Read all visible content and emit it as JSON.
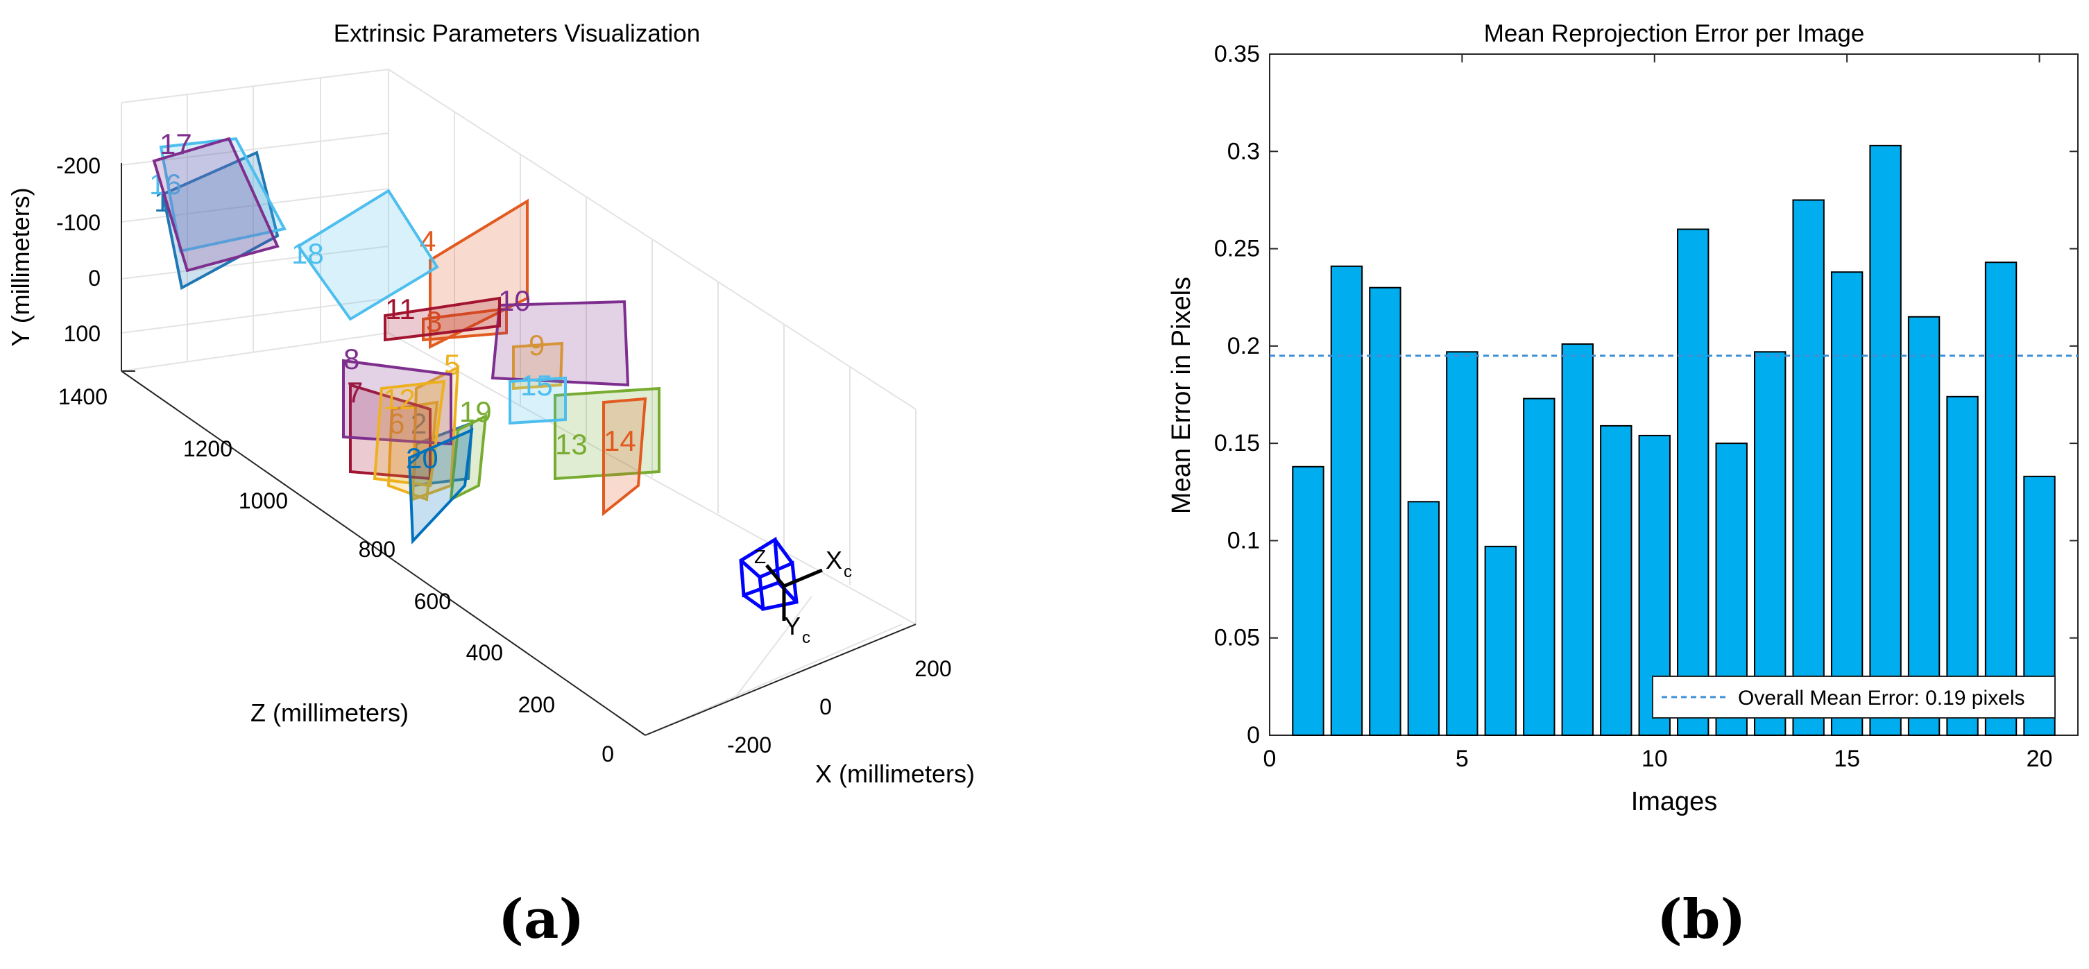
{
  "panels": {
    "a": "(a)",
    "b": "(b)"
  },
  "colors": {
    "bar": "#00AEEF",
    "mean": "#3E8FD6",
    "camera": "#0000FF"
  },
  "chart_data": [
    {
      "type": "scatter3d",
      "title": "Extrinsic Parameters Visualization",
      "xlabel": "X (millimeters)",
      "ylabel": "Y (millimeters)",
      "zlabel": "Z (millimeters)",
      "x_ticks": [
        "-200",
        "0",
        "200"
      ],
      "y_ticks": [
        "-200",
        "-100",
        "0",
        "100"
      ],
      "z_ticks": [
        "0",
        "200",
        "400",
        "600",
        "800",
        "1000",
        "1200",
        "1400"
      ],
      "camera": {
        "x_label": "X",
        "x_sub": "c",
        "y_label": "Y",
        "y_sub": "c",
        "z_label": "Z"
      },
      "boards": [
        {
          "id": "1",
          "color": "#1F77B4"
        },
        {
          "id": "2",
          "color": "#1F77B4"
        },
        {
          "id": "3",
          "color": "#E15A1F"
        },
        {
          "id": "4",
          "color": "#E15A1F"
        },
        {
          "id": "5",
          "color": "#EDB120"
        },
        {
          "id": "6",
          "color": "#EDB120"
        },
        {
          "id": "7",
          "color": "#A2142F"
        },
        {
          "id": "8",
          "color": "#7E2F8E"
        },
        {
          "id": "9",
          "color": "#EDB120"
        },
        {
          "id": "10",
          "color": "#7E2F8E"
        },
        {
          "id": "11",
          "color": "#A2142F"
        },
        {
          "id": "12",
          "color": "#EDB120"
        },
        {
          "id": "13",
          "color": "#77AC30"
        },
        {
          "id": "14",
          "color": "#E15A1F"
        },
        {
          "id": "15",
          "color": "#4DBEEE"
        },
        {
          "id": "16",
          "color": "#4DBEEE"
        },
        {
          "id": "17",
          "color": "#7E2F8E"
        },
        {
          "id": "18",
          "color": "#4DBEEE"
        },
        {
          "id": "19",
          "color": "#77AC30"
        },
        {
          "id": "20",
          "color": "#0072BD"
        }
      ]
    },
    {
      "type": "bar",
      "title": "Mean Reprojection Error per Image",
      "xlabel": "Images",
      "ylabel": "Mean Error in Pixels",
      "categories": [
        1,
        2,
        3,
        4,
        5,
        6,
        7,
        8,
        9,
        10,
        11,
        12,
        13,
        14,
        15,
        16,
        17,
        18,
        19,
        20
      ],
      "values": [
        0.138,
        0.241,
        0.23,
        0.12,
        0.197,
        0.097,
        0.173,
        0.201,
        0.159,
        0.154,
        0.26,
        0.15,
        0.197,
        0.275,
        0.238,
        0.303,
        0.215,
        0.174,
        0.243,
        0.133
      ],
      "xlim": [
        0,
        21
      ],
      "ylim": [
        0,
        0.35
      ],
      "x_ticks": [
        0,
        5,
        10,
        15,
        20
      ],
      "y_ticks": [
        0,
        0.05,
        0.1,
        0.15,
        0.2,
        0.25,
        0.3,
        0.35
      ],
      "y_tick_labels": [
        "0",
        "0.05",
        "0.1",
        "0.15",
        "0.2",
        "0.25",
        "0.3",
        "0.35"
      ],
      "mean_line": 0.195,
      "legend": {
        "label": "Overall Mean Error: 0.19 pixels",
        "position": "bottom-right"
      }
    }
  ]
}
